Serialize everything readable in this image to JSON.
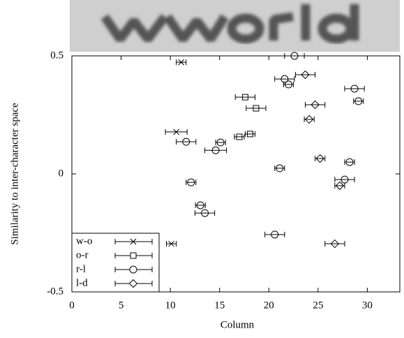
{
  "chart_data": {
    "type": "scatter",
    "x_label": "Column",
    "y_label": "Similarity to inter-character space",
    "xlim": [
      0,
      33.3
    ],
    "ylim": [
      -0.5,
      0.5
    ],
    "xticks": [
      0,
      5,
      10,
      15,
      20,
      25,
      30
    ],
    "yticks": [
      -0.5,
      0,
      0.5
    ],
    "legend": "lower left",
    "series": [
      {
        "name": "w-o",
        "marker": "x",
        "color": "#000",
        "x": [
          11.1,
          10.6,
          10.1
        ],
        "values": [
          0.473,
          0.178,
          -0.296
        ],
        "xerr": [
          0.5,
          1.1,
          0.5
        ]
      },
      {
        "name": "o-r",
        "marker": "square",
        "color": "#000",
        "x": [
          17.6,
          18.7,
          17.0,
          18.1
        ],
        "values": [
          0.325,
          0.278,
          0.157,
          0.169
        ],
        "xerr": [
          1.0,
          1.0,
          0.5,
          0.5
        ]
      },
      {
        "name": "r-l",
        "marker": "circle",
        "color": "#000",
        "x": [
          22.6,
          21.6,
          22.0,
          28.7,
          29.1,
          11.6,
          15.1,
          14.6,
          21.1,
          28.2,
          27.7,
          12.1,
          13.05,
          13.5,
          20.6
        ],
        "values": [
          0.5,
          0.402,
          0.379,
          0.361,
          0.308,
          0.136,
          0.133,
          0.1,
          0.024,
          0.05,
          -0.024,
          -0.036,
          -0.133,
          -0.166,
          -0.257
        ],
        "xerr": [
          1.0,
          1.0,
          0.5,
          1.0,
          0.5,
          1.0,
          0.5,
          1.1,
          0.5,
          0.5,
          1.0,
          0.5,
          0.5,
          1.0,
          1.0
        ]
      },
      {
        "name": "l-d",
        "marker": "diamond",
        "color": "#000",
        "x": [
          23.7,
          24.7,
          24.1,
          25.2,
          27.2,
          26.7
        ],
        "values": [
          0.42,
          0.293,
          0.231,
          0.065,
          -0.05,
          -0.296
        ],
        "xerr": [
          1.0,
          1.0,
          0.5,
          0.5,
          0.5,
          1.0
        ]
      }
    ]
  }
}
